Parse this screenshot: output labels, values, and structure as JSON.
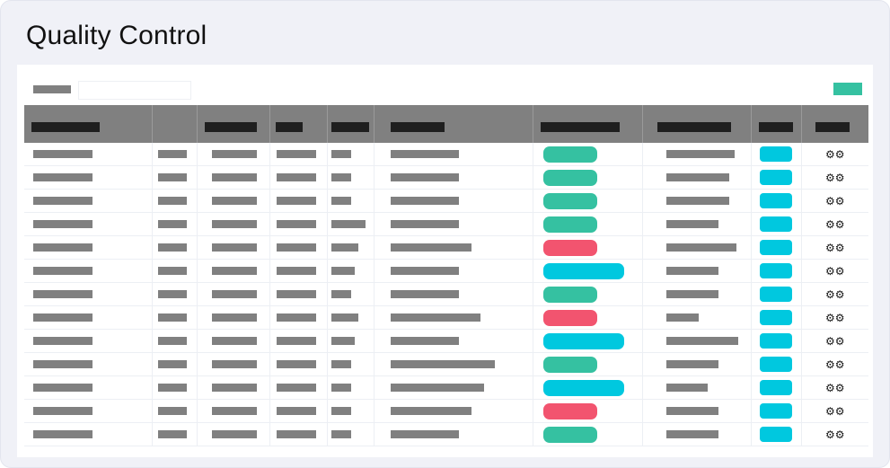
{
  "page": {
    "title": "Quality Control"
  },
  "toolbar": {
    "search_value": ""
  },
  "colors": {
    "teal": "#35c1a1",
    "red": "#f2546f",
    "cyan": "#00c8df",
    "header": "#808080"
  },
  "table": {
    "status_pills": [
      "teal",
      "teal",
      "teal",
      "teal",
      "red",
      "cyan",
      "teal",
      "red",
      "cyan",
      "teal",
      "cyan",
      "red",
      "teal"
    ],
    "action_icon": "settings-gears-icon"
  }
}
